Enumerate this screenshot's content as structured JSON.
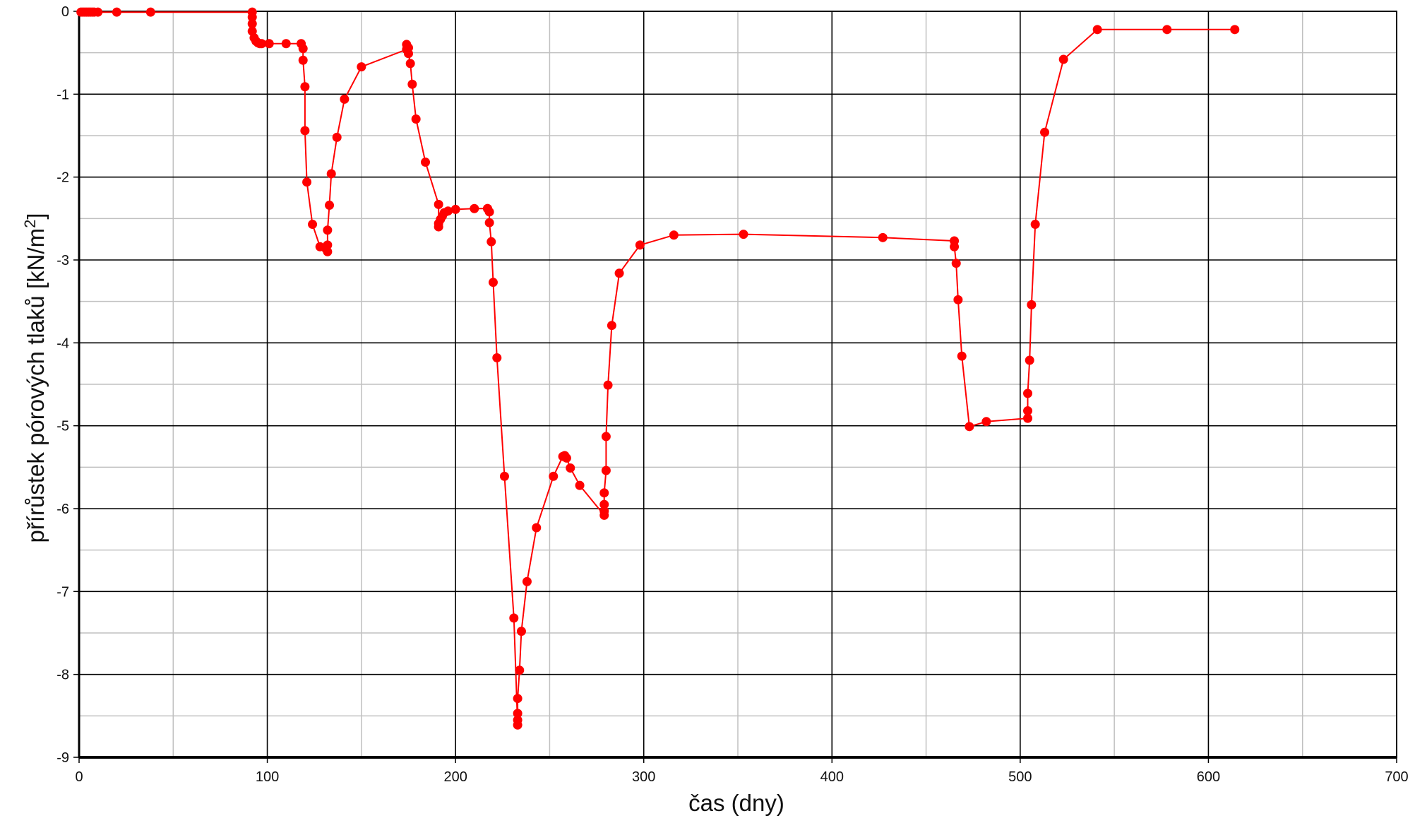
{
  "chart_data": {
    "type": "line",
    "xlabel": "čas (dny)",
    "ylabel": "přírůstek pórových tlaků [kN/m",
    "ylabel_superscript": "2",
    "ylabel_suffix": "]",
    "xlim": [
      0,
      700
    ],
    "ylim": [
      -9,
      0
    ],
    "xticks": [
      0,
      100,
      200,
      300,
      400,
      500,
      600,
      700
    ],
    "yticks": [
      0,
      -1,
      -2,
      -3,
      -4,
      -5,
      -6,
      -7,
      -8,
      -9
    ],
    "xtick_labels": [
      "0",
      "100",
      "200",
      "300",
      "400",
      "500",
      "600",
      "700"
    ],
    "ytick_labels": [
      "0",
      "-1",
      "-2",
      "-3",
      "-4",
      "-5",
      "-6",
      "-7",
      "-8",
      "-9"
    ],
    "grid": true,
    "legend": "none",
    "line_color": "#ff0000",
    "major_grid_color": "#000000",
    "minor_grid_color": "#c0c0c0",
    "series": [
      {
        "x": [
          1,
          2,
          3,
          4,
          5,
          6,
          7,
          8,
          10,
          20,
          38,
          92,
          92,
          92,
          92,
          93,
          94,
          95,
          96,
          97,
          101,
          110,
          118,
          119,
          119,
          120,
          120,
          121,
          124,
          128,
          131,
          132,
          132,
          132,
          133,
          134,
          137,
          141,
          150,
          174,
          174,
          175,
          175,
          176,
          177,
          179,
          184,
          191,
          191,
          191,
          192,
          193,
          194,
          196,
          200,
          210,
          217,
          217,
          218,
          218,
          219,
          220,
          222,
          226,
          231,
          233,
          233,
          233,
          233,
          234,
          235,
          238,
          243,
          252,
          257,
          258,
          259,
          261,
          266,
          279,
          279,
          279,
          279,
          280,
          280,
          281,
          283,
          287,
          298,
          316,
          353,
          427,
          465,
          465,
          466,
          467,
          469,
          473,
          482,
          504,
          504,
          504,
          505,
          506,
          508,
          513,
          523,
          541,
          578,
          614
        ],
        "y": [
          -0.01,
          -0.01,
          -0.01,
          -0.01,
          -0.01,
          -0.01,
          -0.01,
          -0.01,
          -0.01,
          -0.01,
          -0.01,
          -0.01,
          -0.07,
          -0.15,
          -0.24,
          -0.32,
          -0.36,
          -0.38,
          -0.39,
          -0.39,
          -0.39,
          -0.39,
          -0.39,
          -0.45,
          -0.59,
          -0.91,
          -1.44,
          -2.06,
          -2.57,
          -2.84,
          -2.86,
          -2.9,
          -2.82,
          -2.64,
          -2.34,
          -1.96,
          -1.52,
          -1.06,
          -0.67,
          -0.46,
          -0.4,
          -0.44,
          -0.51,
          -0.63,
          -0.88,
          -1.3,
          -1.82,
          -2.33,
          -2.6,
          -2.56,
          -2.51,
          -2.47,
          -2.43,
          -2.41,
          -2.39,
          -2.38,
          -2.38,
          -2.38,
          -2.42,
          -2.55,
          -2.78,
          -3.27,
          -4.18,
          -5.61,
          -7.32,
          -8.61,
          -8.55,
          -8.47,
          -8.29,
          -7.95,
          -7.48,
          -6.88,
          -6.23,
          -5.61,
          -5.37,
          -5.36,
          -5.39,
          -5.51,
          -5.72,
          -6.08,
          -6.03,
          -5.95,
          -5.81,
          -5.54,
          -5.13,
          -4.51,
          -3.79,
          -3.16,
          -2.82,
          -2.7,
          -2.69,
          -2.73,
          -2.77,
          -2.84,
          -3.04,
          -3.48,
          -4.16,
          -5.01,
          -4.95,
          -4.91,
          -4.82,
          -4.61,
          -4.21,
          -3.54,
          -2.57,
          -1.46,
          -0.58,
          -0.22,
          -0.22,
          -0.22
        ]
      }
    ]
  }
}
